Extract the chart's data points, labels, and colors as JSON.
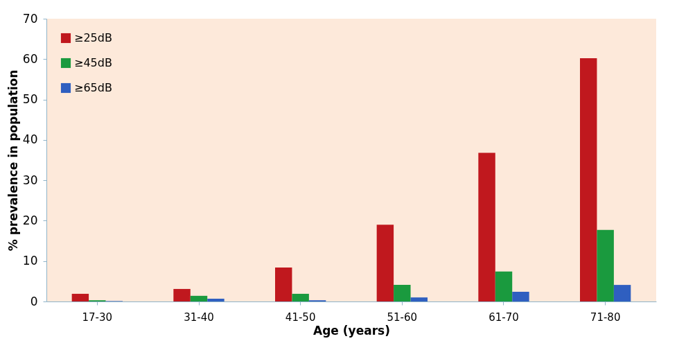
{
  "chart_data": {
    "type": "bar",
    "xlabel": "Age (years)",
    "ylabel": "% prevalence in population",
    "categories": [
      "17-30",
      "31-40",
      "41-50",
      "51-60",
      "61-70",
      "71-80"
    ],
    "series": [
      {
        "name": "≥25dB",
        "color": "#c0181e",
        "values": [
          1.9,
          3.1,
          8.4,
          19.0,
          36.8,
          60.2
        ]
      },
      {
        "name": "≥45dB",
        "color": "#1a9a3e",
        "values": [
          0.3,
          1.4,
          1.9,
          4.1,
          7.4,
          17.7
        ]
      },
      {
        "name": "≥65dB",
        "color": "#2f5fc0",
        "values": [
          0.1,
          0.7,
          0.3,
          1.0,
          2.4,
          4.1
        ]
      }
    ],
    "ylim": [
      0,
      70
    ],
    "yticks": [
      0,
      10,
      20,
      30,
      40,
      50,
      60,
      70
    ],
    "grid": false,
    "legend": "top left"
  }
}
